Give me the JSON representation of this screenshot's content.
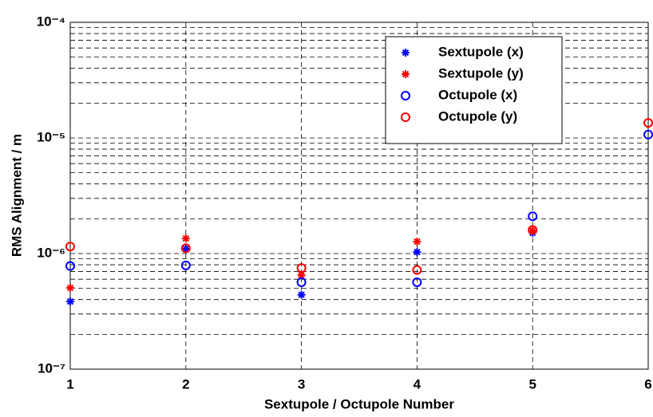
{
  "chart_data": {
    "type": "scatter",
    "xlabel": "Sextupole / Octupole Number",
    "ylabel": "RMS Alignment / m",
    "x": [
      1,
      2,
      3,
      4,
      5,
      6
    ],
    "xlim": [
      1,
      6
    ],
    "xticks": [
      1,
      2,
      3,
      4,
      5,
      6
    ],
    "ylim": [
      1e-07,
      0.0001
    ],
    "yticks": [
      {
        "value": 1e-07,
        "label": "10⁻⁷"
      },
      {
        "value": 1e-06,
        "label": "10⁻⁶"
      },
      {
        "value": 1e-05,
        "label": "10⁻⁵"
      },
      {
        "value": 0.0001,
        "label": "10⁻⁴"
      }
    ],
    "yminor": [
      2e-07,
      3e-07,
      4e-07,
      5e-07,
      6e-07,
      7e-07,
      8e-07,
      9e-07,
      2e-06,
      3e-06,
      4e-06,
      5e-06,
      6e-06,
      7e-06,
      8e-06,
      9e-06,
      2e-05,
      3e-05,
      4e-05,
      5e-05,
      6e-05,
      7e-05,
      8e-05,
      9e-05
    ],
    "log_y": true,
    "grid": true,
    "legend": "upper right",
    "series": [
      {
        "name": "Sextupole (x)",
        "color": "#0000ff",
        "marker": "star",
        "values": [
          3.85e-07,
          1.1e-06,
          4.4e-07,
          1.03e-06,
          1.51e-06,
          null
        ]
      },
      {
        "name": "Sextupole (y)",
        "color": "#ff0000",
        "marker": "star",
        "values": [
          5.05e-07,
          1.35e-06,
          6.5e-07,
          1.27e-06,
          1.58e-06,
          null
        ]
      },
      {
        "name": "Octupole (x)",
        "color": "#0000ff",
        "marker": "circle",
        "values": [
          7.8e-07,
          7.9e-07,
          5.65e-07,
          5.65e-07,
          2.1e-06,
          1.07e-05
        ]
      },
      {
        "name": "Octupole (y)",
        "color": "#ff0000",
        "marker": "circle",
        "values": [
          1.15e-06,
          1.11e-06,
          7.5e-07,
          7.2e-07,
          1.6e-06,
          1.35e-05
        ]
      }
    ]
  }
}
